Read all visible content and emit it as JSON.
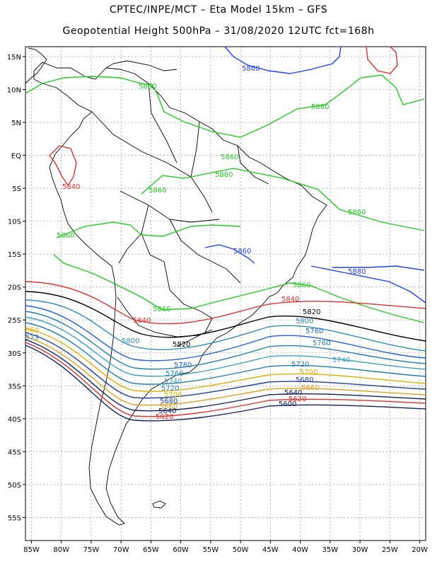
{
  "header": {
    "line1": "CPTEC/INPE/MCT –  Eta Model 15km – GFS",
    "line2": "Geopotential Height 500hPa – 31/08/2020 12UTC fct=168h"
  },
  "map": {
    "lon_range": [
      -86,
      -19
    ],
    "lat_range": [
      -58.5,
      16.5
    ],
    "grid": true,
    "lon_ticks": [
      "85W",
      "80W",
      "75W",
      "70W",
      "65W",
      "60W",
      "55W",
      "50W",
      "45W",
      "40W",
      "35W",
      "30W",
      "25W",
      "20W"
    ],
    "lat_ticks": [
      "15N",
      "10N",
      "5N",
      "EQ",
      "5S",
      "10S",
      "15S",
      "20S",
      "25S",
      "30S",
      "35S",
      "40S",
      "45S",
      "50S",
      "55S"
    ]
  },
  "contour_labels": [
    {
      "text": "5860",
      "color": "#2040ff"
    },
    {
      "text": "5860",
      "color": "#22cc22"
    },
    {
      "text": "5860",
      "color": "#22cc22"
    },
    {
      "text": "5860",
      "color": "#22cc22"
    },
    {
      "text": "5860",
      "color": "#22cc22"
    },
    {
      "text": "5860",
      "color": "#22cc22"
    },
    {
      "text": "5860",
      "color": "#22cc22"
    },
    {
      "text": "5840",
      "color": "#e03030"
    },
    {
      "text": "5860",
      "color": "#22cc22"
    },
    {
      "text": "5860",
      "color": "#2040ff"
    },
    {
      "text": "5880",
      "color": "#2040ff"
    },
    {
      "text": "5860",
      "color": "#22cc22"
    },
    {
      "text": "5860",
      "color": "#22cc22"
    },
    {
      "text": "5840",
      "color": "#e03030"
    },
    {
      "text": "5840",
      "color": "#e03030"
    },
    {
      "text": "5820",
      "color": "#000000"
    },
    {
      "text": "5820",
      "color": "#000000"
    },
    {
      "text": "5800",
      "color": "#2e8fb8"
    },
    {
      "text": "5780",
      "color": "#2060e0"
    },
    {
      "text": "5760",
      "color": "#2060e0"
    },
    {
      "text": "5760",
      "color": "#1f7fb0"
    },
    {
      "text": "5740",
      "color": "#3aa0c0"
    },
    {
      "text": "5720",
      "color": "#1f7fb0"
    },
    {
      "text": "5700",
      "color": "#e0b000"
    },
    {
      "text": "5680",
      "color": "#1f3f9f"
    },
    {
      "text": "5660",
      "color": "#e0a020"
    },
    {
      "text": "5640",
      "color": "#102060"
    },
    {
      "text": "5620",
      "color": "#e03030"
    },
    {
      "text": "5600",
      "color": "#102060"
    },
    {
      "text": "5800",
      "color": "#2e8fb8"
    },
    {
      "text": "5780",
      "color": "#2060e0"
    },
    {
      "text": "5760",
      "color": "#1f7fb0"
    },
    {
      "text": "5740",
      "color": "#3aa0c0"
    },
    {
      "text": "5720",
      "color": "#1f7fb0"
    },
    {
      "text": "5700",
      "color": "#e0b000"
    },
    {
      "text": "5680",
      "color": "#1f3f9f"
    },
    {
      "text": "5660",
      "color": "#e0a020"
    },
    {
      "text": "5640",
      "color": "#102060"
    },
    {
      "text": "5620",
      "color": "#e03030"
    },
    {
      "text": "560",
      "color": "#e0b000"
    },
    {
      "text": "573",
      "color": "#1f7fb0"
    }
  ],
  "band_colors": [
    "#e03030",
    "#000000",
    "#2e8fb8",
    "#2060e0",
    "#1f7fb0",
    "#3aa0c0",
    "#1f7fb0",
    "#e0b000",
    "#1f3f9f",
    "#e0a020",
    "#102060",
    "#e03030",
    "#102060"
  ]
}
